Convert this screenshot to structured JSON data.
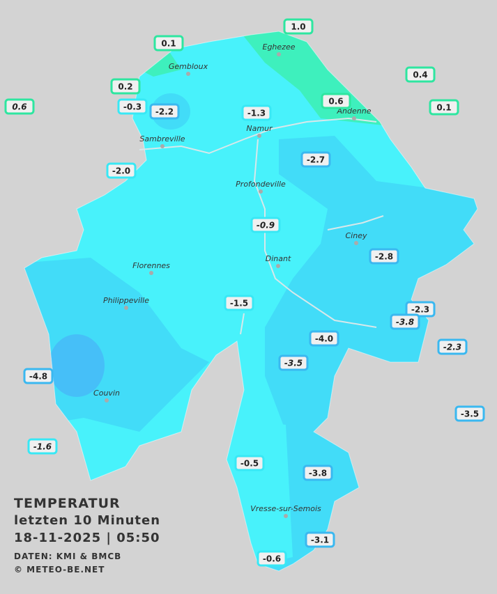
{
  "header": {
    "title": "TEMPERATUR",
    "period": "letzten 10 Minuten",
    "timestamp": "18-11-2025  |  05:50",
    "source": "DATEN: KMI & BMCB",
    "copyright": "© METEO-BE.NET"
  },
  "cities": [
    "Eghezee",
    "Gembloux",
    "Andenne",
    "Namur",
    "Sambreville",
    "Profondeville",
    "Ciney",
    "Dinant",
    "Florennes",
    "Philippeville",
    "Couvin",
    "Vresse-sur-Semois"
  ],
  "stations": [
    {
      "label": "1.0",
      "color": "#2ee6a0"
    },
    {
      "label": "0.1",
      "color": "#2ee6a0"
    },
    {
      "label": "0.4",
      "color": "#2ee6a0"
    },
    {
      "label": "0.2",
      "color": "#2ee6a0"
    },
    {
      "label": "0.6",
      "color": "#2ee6a0",
      "italic": true
    },
    {
      "label": "-0.3",
      "color": "#38e8f5"
    },
    {
      "label": "-2.2",
      "color": "#3ab8f0"
    },
    {
      "label": "-1.3",
      "color": "#38e8f5"
    },
    {
      "label": "0.6",
      "color": "#2ee6a0"
    },
    {
      "label": "0.1",
      "color": "#2ee6a0"
    },
    {
      "label": "-2.0",
      "color": "#38e8f5"
    },
    {
      "label": "-2.7",
      "color": "#3ab8f0"
    },
    {
      "label": "-0.9",
      "color": "#38e8f5",
      "italic": true
    },
    {
      "label": "-2.8",
      "color": "#3ab8f0"
    },
    {
      "label": "-1.5",
      "color": "#38e8f5"
    },
    {
      "label": "-2.3",
      "color": "#3ab8f0"
    },
    {
      "label": "-3.8",
      "color": "#3ab8f0",
      "italic": true
    },
    {
      "label": "-2.3",
      "color": "#3ab8f0",
      "italic": true
    },
    {
      "label": "-4.0",
      "color": "#3ab8f0"
    },
    {
      "label": "-3.5",
      "color": "#3ab8f0",
      "italic": true
    },
    {
      "label": "-4.8",
      "color": "#3ab8f0"
    },
    {
      "label": "-3.5",
      "color": "#3ab8f0"
    },
    {
      "label": "-1.6",
      "color": "#38e8f5",
      "italic": true
    },
    {
      "label": "-0.5",
      "color": "#38e8f5"
    },
    {
      "label": "-3.8",
      "color": "#3ab8f0"
    },
    {
      "label": "-3.1",
      "color": "#3ab8f0"
    },
    {
      "label": "-0.6",
      "color": "#38e8f5"
    }
  ]
}
